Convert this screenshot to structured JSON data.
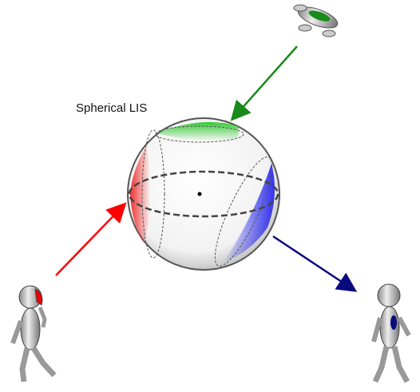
{
  "diagram": {
    "label": "Spherical LIS"
  }
}
